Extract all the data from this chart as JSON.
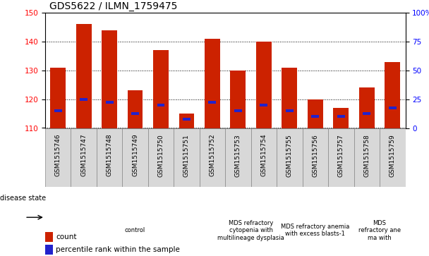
{
  "title": "GDS5622 / ILMN_1759475",
  "samples": [
    "GSM1515746",
    "GSM1515747",
    "GSM1515748",
    "GSM1515749",
    "GSM1515750",
    "GSM1515751",
    "GSM1515752",
    "GSM1515753",
    "GSM1515754",
    "GSM1515755",
    "GSM1515756",
    "GSM1515757",
    "GSM1515758",
    "GSM1515759"
  ],
  "count_values": [
    131,
    146,
    144,
    123,
    137,
    115,
    141,
    130,
    140,
    131,
    120,
    117,
    124,
    133
  ],
  "percentile_values": [
    116,
    120,
    119,
    115,
    118,
    113,
    119,
    116,
    118,
    116,
    114,
    114,
    115,
    117
  ],
  "ylim_left": [
    110,
    150
  ],
  "ylim_right": [
    0,
    100
  ],
  "yticks_left": [
    110,
    120,
    130,
    140,
    150
  ],
  "yticks_right": [
    0,
    25,
    50,
    75,
    100
  ],
  "bar_color": "#cc2200",
  "percentile_color": "#2222cc",
  "bar_width": 0.6,
  "group_starts": [
    0,
    7,
    9,
    12
  ],
  "group_ends": [
    7,
    9,
    12,
    14
  ],
  "group_labels": [
    "control",
    "MDS refractory\ncytopenia with\nmultilineage dysplasia",
    "MDS refractory anemia\nwith excess blasts-1",
    "MDS\nrefractory ane\nma with"
  ],
  "group_color": "#ccffcc",
  "legend_count_label": "count",
  "legend_percentile_label": "percentile rank within the sample",
  "disease_state_label": "disease state",
  "title_fontsize": 10,
  "tick_fontsize": 7.5,
  "sample_fontsize": 6.5,
  "group_fontsize": 6.0,
  "legend_fontsize": 7.5
}
